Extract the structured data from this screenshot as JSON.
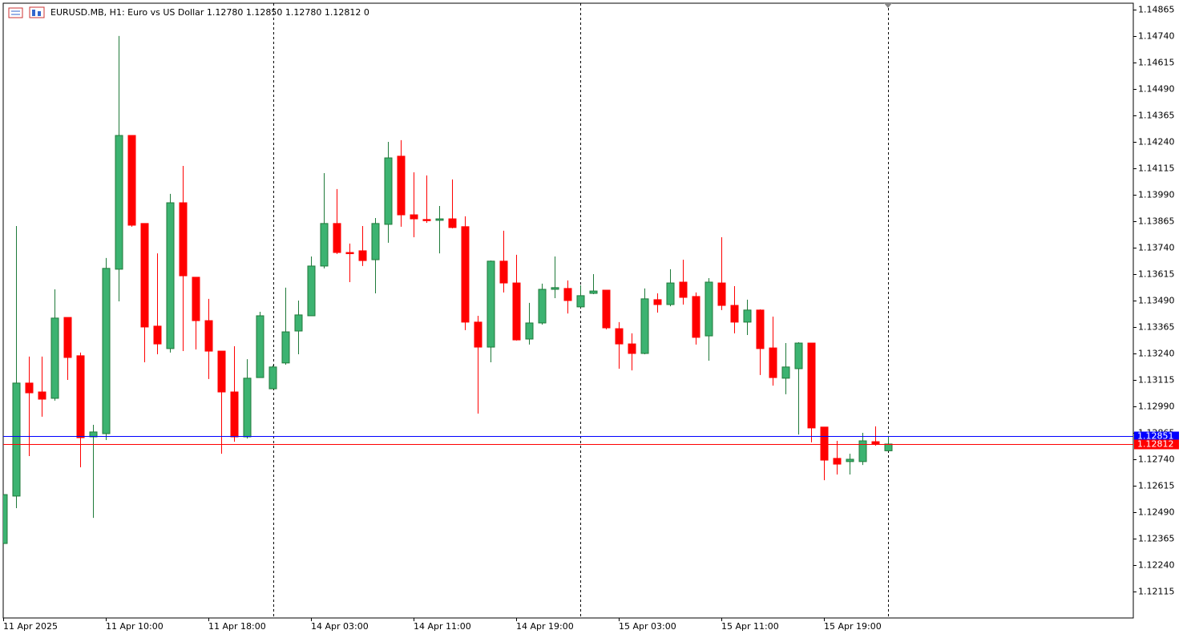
{
  "chart_data": {
    "type": "candlestick",
    "title": "EURUSD.MB, H1:  Euro vs US Dollar  1.12780 1.12850 1.12780 1.12812  0",
    "categories": [
      "11 Apr 2025",
      null,
      null,
      null,
      null,
      null,
      null,
      null,
      "11 Apr 10:00",
      null,
      null,
      null,
      null,
      null,
      null,
      null,
      "11 Apr 18:00",
      null,
      null,
      null,
      null,
      null,
      null,
      null,
      "14 Apr 03:00",
      null,
      null,
      null,
      null,
      null,
      null,
      null,
      "14 Apr 11:00",
      null,
      null,
      null,
      null,
      null,
      null,
      null,
      "14 Apr 19:00",
      null,
      null,
      null,
      null,
      null,
      null,
      null,
      "15 Apr 03:00",
      null,
      null,
      null,
      null,
      null,
      null,
      null,
      "15 Apr 11:00",
      null,
      null,
      null,
      null,
      null,
      null,
      null,
      "15 Apr 19:00",
      null,
      null,
      null,
      null,
      null
    ],
    "open": [
      1.12342,
      1.12566,
      1.131,
      1.13058,
      1.13028,
      1.1341,
      1.13229,
      1.12846,
      1.12861,
      1.13638,
      1.1427,
      1.13854,
      1.13369,
      1.13263,
      1.13952,
      1.136,
      1.13395,
      1.13251,
      1.13058,
      1.12846,
      1.13126,
      1.13073,
      1.13195,
      1.13346,
      1.13418,
      1.13653,
      1.13854,
      1.13717,
      1.13725,
      1.13683,
      1.1385,
      1.14172,
      1.13895,
      1.13873,
      1.13869,
      1.13876,
      1.13839,
      1.13388,
      1.1327,
      1.13676,
      1.13573,
      1.13308,
      1.13384,
      1.13543,
      1.13547,
      1.1346,
      1.13524,
      1.13539,
      1.13357,
      1.13285,
      1.1324,
      1.13494,
      1.13471,
      1.13577,
      1.13509,
      1.13323,
      1.13573,
      1.13467,
      1.13388,
      1.13445,
      1.13266,
      1.13123,
      1.13168,
      1.13289,
      1.12892,
      1.12744,
      1.12729,
      1.12729,
      1.12823,
      1.1278
    ],
    "high": [
      1.12573,
      1.13842,
      1.13225,
      1.13225,
      1.13543,
      1.1341,
      1.13244,
      1.12903,
      1.13691,
      1.1474,
      1.1427,
      1.13854,
      1.13713,
      1.13994,
      1.14126,
      1.136,
      1.13498,
      1.13251,
      1.13274,
      1.13213,
      1.13437,
      1.13183,
      1.13551,
      1.1349,
      1.13698,
      1.14092,
      1.14017,
      1.13759,
      1.13842,
      1.1388,
      1.1424,
      1.14248,
      1.14096,
      1.14081,
      1.13937,
      1.14062,
      1.13888,
      1.13418,
      1.13679,
      1.1382,
      1.13706,
      1.13479,
      1.1357,
      1.13698,
      1.13585,
      1.13562,
      1.13615,
      1.13539,
      1.13388,
      1.13335,
      1.13547,
      1.13524,
      1.13638,
      1.13683,
      1.13528,
      1.13596,
      1.13789,
      1.13558,
      1.13494,
      1.13448,
      1.13414,
      1.13289,
      1.13293,
      1.13289,
      1.12892,
      1.12827,
      1.12766,
      1.12865,
      1.12895,
      1.1285
    ],
    "low": [
      1.12342,
      1.12509,
      1.12755,
      1.12941,
      1.13017,
      1.13115,
      1.12702,
      1.12463,
      1.12831,
      1.13486,
      1.13839,
      1.13198,
      1.13236,
      1.13244,
      1.13251,
      1.13259,
      1.13119,
      1.12766,
      1.12823,
      1.12838,
      1.13126,
      1.13073,
      1.13187,
      1.13236,
      1.13418,
      1.13642,
      1.1371,
      1.13577,
      1.13653,
      1.13524,
      1.13763,
      1.13839,
      1.13789,
      1.13857,
      1.13713,
      1.13831,
      1.1335,
      1.12956,
      1.13198,
      1.13528,
      1.13301,
      1.13282,
      1.13376,
      1.13501,
      1.13429,
      1.13456,
      1.1352,
      1.13354,
      1.13168,
      1.1316,
      1.13236,
      1.13433,
      1.13463,
      1.13471,
      1.13282,
      1.13206,
      1.13445,
      1.13335,
      1.13327,
      1.13138,
      1.13088,
      1.13047,
      1.12857,
      1.1282,
      1.12641,
      1.12668,
      1.12668,
      1.12713,
      1.12804,
      1.1278
    ],
    "close": [
      1.12573,
      1.131,
      1.13054,
      1.13024,
      1.13407,
      1.13221,
      1.12842,
      1.12869,
      1.13642,
      1.1427,
      1.13846,
      1.13365,
      1.13285,
      1.13952,
      1.13607,
      1.13395,
      1.13251,
      1.13058,
      1.12846,
      1.13123,
      1.13418,
      1.13176,
      1.13342,
      1.13422,
      1.13653,
      1.13854,
      1.13717,
      1.13713,
      1.13679,
      1.13854,
      1.14164,
      1.13895,
      1.13876,
      1.13869,
      1.13876,
      1.13835,
      1.13388,
      1.1327,
      1.13676,
      1.13573,
      1.13304,
      1.13384,
      1.13543,
      1.13551,
      1.1349,
      1.13513,
      1.13535,
      1.13361,
      1.13285,
      1.1324,
      1.13498,
      1.13471,
      1.13573,
      1.13505,
      1.13316,
      1.13577,
      1.13467,
      1.13388,
      1.13445,
      1.13263,
      1.13126,
      1.13176,
      1.13289,
      1.12888,
      1.12736,
      1.12717,
      1.1274,
      1.12827,
      1.12812,
      1.12812
    ],
    "up_color": "#3cb371",
    "up_line_color": "#1f7a3a",
    "down_color": "#ff0000",
    "ylim": [
      1.1199,
      1.14895
    ],
    "yticks": [
      1.12115,
      {
        "value": 1.1224,
        "label": "1.12240"
      },
      1.12365,
      {
        "value": 1.1249,
        "label": "1.12490"
      },
      1.12615,
      {
        "value": 1.1274,
        "label": "1.12740"
      },
      1.12865,
      {
        "value": 1.1299,
        "label": "1.12990"
      },
      1.13115,
      {
        "value": 1.1324,
        "label": "1.13240"
      },
      1.13365,
      {
        "value": 1.1349,
        "label": "1.13490"
      },
      1.13615,
      {
        "value": 1.1374,
        "label": "1.13740"
      },
      1.13865,
      {
        "value": 1.1399,
        "label": "1.13990"
      },
      1.14115,
      {
        "value": 1.1424,
        "label": "1.14240"
      },
      1.14365,
      {
        "value": 1.1449,
        "label": "1.14490"
      },
      1.14615,
      {
        "value": 1.1474,
        "label": "1.14740"
      },
      1.14865
    ],
    "price_lines": [
      {
        "value": 1.12851,
        "color": "#0000ff"
      },
      {
        "value": 1.12812,
        "color": "#ff0000"
      }
    ]
  }
}
